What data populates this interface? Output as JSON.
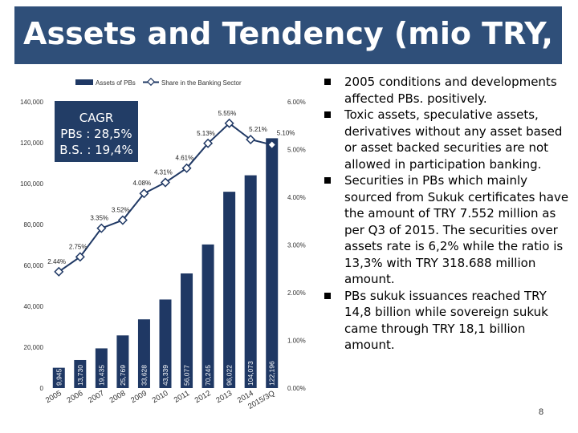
{
  "title": "Assets and Tendency (mio TRY, %)",
  "chart_data": {
    "type": "bar",
    "categories": [
      "2005",
      "2006",
      "2007",
      "2008",
      "2009",
      "2010",
      "2011",
      "2012",
      "2013",
      "2014",
      "2015/3Q"
    ],
    "series": [
      {
        "name": "Assets of PBs",
        "type": "bar",
        "values": [
          9945,
          13730,
          19435,
          25769,
          33628,
          43339,
          56077,
          70245,
          96022,
          104073,
          122196
        ],
        "labels": [
          "9,945",
          "13,730",
          "19,435",
          "25,769",
          "33,628",
          "43,339",
          "56,077",
          "70,245",
          "96,022",
          "104,073",
          "122,196"
        ]
      },
      {
        "name": "Share in the Banking Sector",
        "type": "line",
        "values": [
          2.44,
          2.75,
          3.35,
          3.52,
          4.08,
          4.31,
          4.61,
          5.13,
          5.55,
          5.21,
          5.1
        ],
        "labels": [
          "2.44%",
          "2.75%",
          "3.35%",
          "3.52%",
          "4.08%",
          "4.31%",
          "4.61%",
          "5.13%",
          "5.55%",
          "5.21%",
          "5.10%"
        ]
      }
    ],
    "y_left": {
      "range": [
        0,
        140000
      ],
      "ticks": [
        "0",
        "20,000",
        "40,000",
        "60,000",
        "80,000",
        "100,000",
        "120,000",
        "140,000"
      ]
    },
    "y_right": {
      "range": [
        0,
        6
      ],
      "ticks": [
        "0.00%",
        "1.00%",
        "2.00%",
        "3.00%",
        "4.00%",
        "5.00%",
        "6.00%"
      ]
    },
    "legend_position": "top",
    "colors": {
      "bar": "#1f3864",
      "line": "#1f3864"
    }
  },
  "cagr": {
    "line1": "CAGR",
    "line2": "PBs : 28,5%",
    "line3": "B.S. : 19,4%"
  },
  "bullets": [
    "2005 conditions and developments affected PBs. positively.",
    "Toxic assets, speculative assets, derivatives without any asset based or asset backed securities are not allowed in participation banking.",
    "Securities in PBs which mainly sourced from Sukuk certificates have the amount of TRY 7.552 million as per Q3 of 2015. The securities over assets rate is 6,2% while the ratio is 13,3% with TRY 318.688 million amount.",
    "PBs sukuk issuances reached TRY 14,8 billion while sovereign sukuk came through TRY 18,1 billion amount."
  ],
  "page_number": "8"
}
